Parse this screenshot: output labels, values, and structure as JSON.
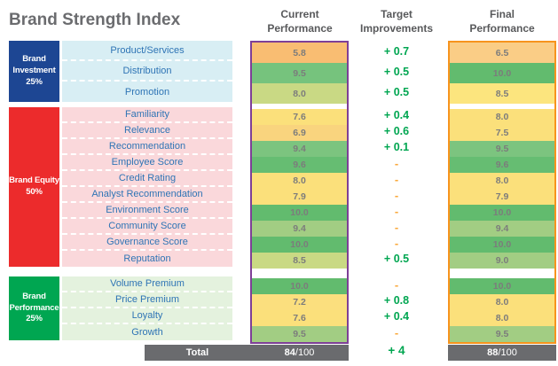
{
  "title": "Brand Strength Index",
  "columns": {
    "current": "Current Performance",
    "target": "Target Improvements",
    "final": "Final Performance"
  },
  "groups": [
    {
      "name": "Brand Investment",
      "weight": "25%",
      "color": "#1D4693",
      "label_bg": "#D8EEF4",
      "rows": [
        {
          "label": "Product/Services",
          "current": "5.8",
          "current_color": "#F9BD72",
          "target": "+ 0.7",
          "final": "6.5",
          "final_color": "#FACD86"
        },
        {
          "label": "Distribution",
          "current": "9.5",
          "current_color": "#76C37D",
          "target": "+ 0.5",
          "final": "10.0",
          "final_color": "#62BB6E"
        },
        {
          "label": "Promotion",
          "current": "8.0",
          "current_color": "#C9D984",
          "target": "+ 0.5",
          "final": "8.5",
          "final_color": "#FCE57E"
        }
      ]
    },
    {
      "name": "Brand Equity",
      "weight": "50%",
      "color": "#EC2B2C",
      "label_bg": "#FAD8DB",
      "rows": [
        {
          "label": "Familiarity",
          "current": "7.6",
          "current_color": "#FBE07B",
          "target": "+ 0.4",
          "final": "8.0",
          "final_color": "#FBE07B"
        },
        {
          "label": "Relevance",
          "current": "6.9",
          "current_color": "#F9D47E",
          "target": "+ 0.6",
          "final": "7.5",
          "final_color": "#FBE07B"
        },
        {
          "label": "Recommendation",
          "current": "9.4",
          "current_color": "#7CC47F",
          "target": "+ 0.1",
          "final": "9.5",
          "final_color": "#7CC47F"
        },
        {
          "label": "Employee Score",
          "current": "9.6",
          "current_color": "#66BD72",
          "target": "-",
          "final": "9.6",
          "final_color": "#66BD72"
        },
        {
          "label": "Credit Rating",
          "current": "8.0",
          "current_color": "#FBE07B",
          "target": "-",
          "final": "8.0",
          "final_color": "#FBE07B"
        },
        {
          "label": "Analyst Recommendation",
          "current": "7.9",
          "current_color": "#FBE07B",
          "target": "-",
          "final": "7.9",
          "final_color": "#FBE07B"
        },
        {
          "label": "Environment Score",
          "current": "10.0",
          "current_color": "#62BB6E",
          "target": "-",
          "final": "10.0",
          "final_color": "#62BB6E"
        },
        {
          "label": "Community Score",
          "current": "9.4",
          "current_color": "#A2CD83",
          "target": "-",
          "final": "9.4",
          "final_color": "#A2CD83"
        },
        {
          "label": "Governance Score",
          "current": "10.0",
          "current_color": "#62BB6E",
          "target": "-",
          "final": "10.0",
          "final_color": "#62BB6E"
        },
        {
          "label": "Reputation",
          "current": "8.5",
          "current_color": "#C9D984",
          "target": "+ 0.5",
          "final": "9.0",
          "final_color": "#A2CD83"
        }
      ]
    },
    {
      "name": "Brand Performance",
      "weight": "25%",
      "color": "#00A651",
      "label_bg": "#E4F2DE",
      "rows": [
        {
          "label": "Volume Premium",
          "current": "10.0",
          "current_color": "#62BB6E",
          "target": "-",
          "final": "10.0",
          "final_color": "#62BB6E"
        },
        {
          "label": "Price Premium",
          "current": "7.2",
          "current_color": "#FBDF7E",
          "target": "+ 0.8",
          "final": "8.0",
          "final_color": "#FBE07B"
        },
        {
          "label": "Loyalty",
          "current": "7.6",
          "current_color": "#FBE07B",
          "target": "+ 0.4",
          "final": "8.0",
          "final_color": "#FBE07B"
        },
        {
          "label": "Growth",
          "current": "9.5",
          "current_color": "#A2CD83",
          "target": "-",
          "final": "9.5",
          "final_color": "#A2CD83"
        }
      ]
    }
  ],
  "total": {
    "label": "Total",
    "current_score": "84",
    "final_score": "88",
    "denominator": "/100",
    "target": "+ 4"
  },
  "colors": {
    "current_box_border": "#7E3F97",
    "final_box_border": "#F7941E",
    "gain_text": "#00A651",
    "dash_text": "#F9A93C",
    "total_bar": "#6A6B6E",
    "header_text": "#58595B",
    "title_text": "#6B6C6F",
    "row_label_text": "#2E74B5",
    "value_text": "#7C7C7C"
  },
  "chart_data": {
    "type": "table",
    "title": "Brand Strength Index",
    "columns": [
      "Current Performance",
      "Target Improvements",
      "Final Performance"
    ],
    "scale_max": 10,
    "groups": [
      {
        "name": "Brand Investment",
        "weight_pct": 25,
        "rows": [
          {
            "label": "Product/Services",
            "current": 5.8,
            "improvement": 0.7,
            "final": 6.5
          },
          {
            "label": "Distribution",
            "current": 9.5,
            "improvement": 0.5,
            "final": 10.0
          },
          {
            "label": "Promotion",
            "current": 8.0,
            "improvement": 0.5,
            "final": 8.5
          }
        ]
      },
      {
        "name": "Brand Equity",
        "weight_pct": 50,
        "rows": [
          {
            "label": "Familiarity",
            "current": 7.6,
            "improvement": 0.4,
            "final": 8.0
          },
          {
            "label": "Relevance",
            "current": 6.9,
            "improvement": 0.6,
            "final": 7.5
          },
          {
            "label": "Recommendation",
            "current": 9.4,
            "improvement": 0.1,
            "final": 9.5
          },
          {
            "label": "Employee Score",
            "current": 9.6,
            "improvement": null,
            "final": 9.6
          },
          {
            "label": "Credit Rating",
            "current": 8.0,
            "improvement": null,
            "final": 8.0
          },
          {
            "label": "Analyst Recommendation",
            "current": 7.9,
            "improvement": null,
            "final": 7.9
          },
          {
            "label": "Environment Score",
            "current": 10.0,
            "improvement": null,
            "final": 10.0
          },
          {
            "label": "Community Score",
            "current": 9.4,
            "improvement": null,
            "final": 9.4
          },
          {
            "label": "Governance Score",
            "current": 10.0,
            "improvement": null,
            "final": 10.0
          },
          {
            "label": "Reputation",
            "current": 8.5,
            "improvement": 0.5,
            "final": 9.0
          }
        ]
      },
      {
        "name": "Brand Performance",
        "weight_pct": 25,
        "rows": [
          {
            "label": "Volume Premium",
            "current": 10.0,
            "improvement": null,
            "final": 10.0
          },
          {
            "label": "Price Premium",
            "current": 7.2,
            "improvement": 0.8,
            "final": 8.0
          },
          {
            "label": "Loyalty",
            "current": 7.6,
            "improvement": 0.4,
            "final": 8.0
          },
          {
            "label": "Growth",
            "current": 9.5,
            "improvement": null,
            "final": 9.5
          }
        ]
      }
    ],
    "total": {
      "current": 84,
      "improvement": 4,
      "final": 88,
      "out_of": 100
    }
  }
}
